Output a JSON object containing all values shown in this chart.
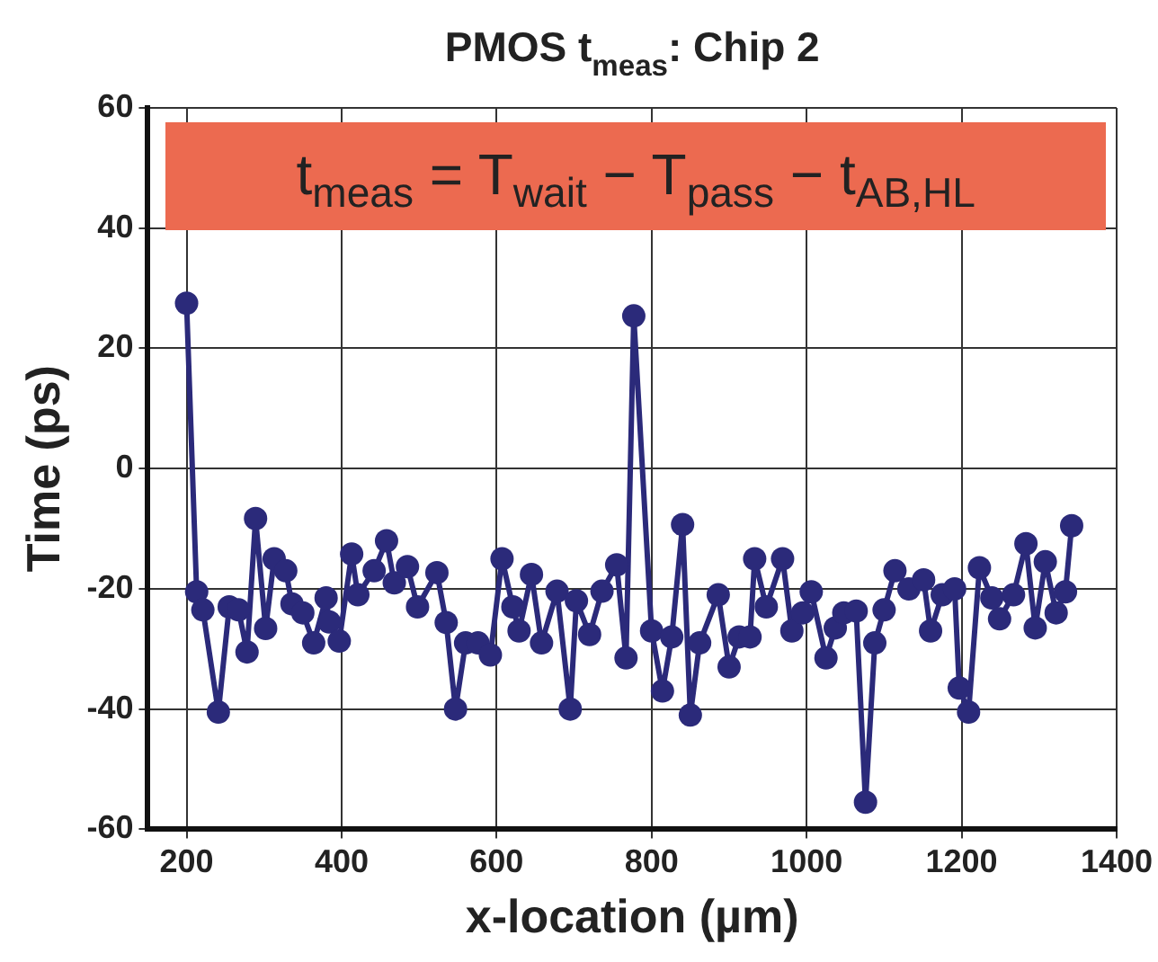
{
  "chart_data": {
    "type": "line",
    "title": "PMOS t$_{meas}$: Chip 2",
    "xlabel": "x-location (µm)",
    "ylabel": "Time (ps)",
    "annotations": [
      "t$_{meas}$ = T$_{wait}$ − T$_{pass}$ − t$_{AB,HL}$"
    ],
    "x": [
      200,
      213,
      221,
      241,
      255,
      267,
      278,
      289,
      302,
      313,
      328,
      336,
      350,
      364,
      380,
      384,
      397,
      413,
      421,
      442,
      458,
      468,
      485,
      498,
      523,
      535,
      547,
      560,
      576,
      592,
      607,
      621,
      629,
      645,
      658,
      678,
      695,
      703,
      720,
      736,
      755,
      767,
      777,
      800,
      814,
      826,
      840,
      850,
      862,
      886,
      900,
      913,
      927,
      933,
      948,
      969,
      981,
      995,
      1006,
      1025,
      1037,
      1048,
      1064,
      1076,
      1088,
      1100,
      1114,
      1132,
      1151,
      1160,
      1175,
      1191,
      1197,
      1209,
      1223,
      1239,
      1249,
      1267,
      1283,
      1295,
      1308,
      1322,
      1334,
      1342
    ],
    "series": [
      {
        "color": "#2b2a7a",
        "values": [
          27.5,
          -20.5,
          -23.5,
          -40.5,
          -23,
          -23.5,
          -30.5,
          -8.3,
          -26.6,
          -15,
          -17,
          -22.5,
          -24,
          -29,
          -21.5,
          -25.5,
          -28.7,
          -14.2,
          -21,
          -17,
          -12,
          -19,
          -16.3,
          -23,
          -17.3,
          -25.6,
          -40,
          -29,
          -29,
          -31,
          -15,
          -23,
          -27,
          -17.6,
          -29,
          -20.4,
          -40,
          -22,
          -27.6,
          -20.4,
          -16,
          -31.5,
          25.4,
          -27,
          -37,
          -28,
          -9.3,
          -41,
          -29,
          -21,
          -33,
          -28,
          -28,
          -15,
          -23,
          -15,
          -27,
          -24,
          -20.5,
          -31.5,
          -26.5,
          -24,
          -23.7,
          -55.5,
          -29,
          -23.5,
          -17,
          -20,
          -18.5,
          -27,
          -21,
          -20,
          -36.5,
          -40.5,
          -16.5,
          -21.5,
          -25,
          -21,
          -12.5,
          -26.5,
          -15.5,
          -24,
          -20.5,
          -9.5
        ]
      }
    ],
    "xlim": [
      150,
      1400
    ],
    "xticks": [
      200,
      400,
      600,
      800,
      1000,
      1200,
      1400
    ],
    "ylim": [
      -60,
      60
    ],
    "yticks": [
      -60,
      -40,
      -20,
      0,
      20,
      40,
      60
    ],
    "grid": true,
    "legend": false,
    "marker": "circle",
    "line_style": "solid"
  }
}
